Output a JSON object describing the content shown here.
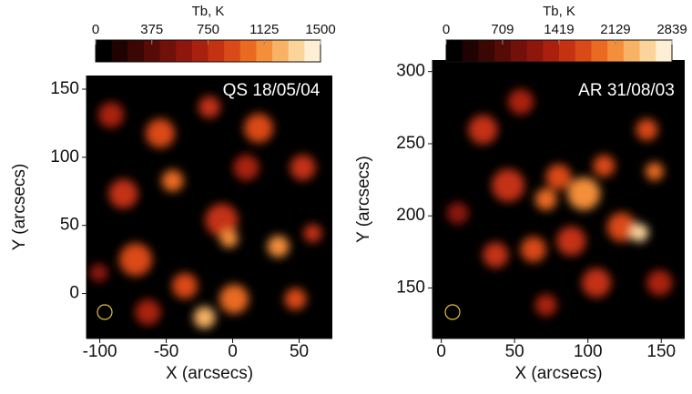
{
  "chart_data": [
    {
      "type": "heatmap",
      "title": "QS 18/05/04",
      "xlabel": "X (arcsecs)",
      "ylabel": "Y (arcsecs)",
      "xlim": [
        -110,
        75
      ],
      "ylim": [
        -33,
        160
      ],
      "xticks": [
        -100,
        -50,
        0,
        50
      ],
      "yticks": [
        0,
        50,
        100,
        150
      ],
      "colorbar": {
        "label": "Tb, K",
        "clim": [
          0,
          1500
        ],
        "ticks": [
          0,
          375,
          750,
          1125,
          1500
        ]
      },
      "colormap": [
        "#000000",
        "#1e0302",
        "#3a0704",
        "#560b06",
        "#72100a",
        "#8e160c",
        "#aa200e",
        "#c43212",
        "#da4a18",
        "#ea6a22",
        "#f48e3a",
        "#f8b266",
        "#fbd49c",
        "#fdefd4"
      ]
    },
    {
      "type": "heatmap",
      "title": "AR 31/08/03",
      "xlabel": "X (arcsecs)",
      "ylabel": "Y (arcsecs)",
      "xlim": [
        -6,
        166
      ],
      "ylim": [
        115,
        308
      ],
      "xticks": [
        0,
        50,
        100,
        150
      ],
      "yticks": [
        150,
        200,
        250,
        300
      ],
      "colorbar": {
        "label": "Tb, K",
        "clim": [
          0,
          2839
        ],
        "ticks": [
          0,
          709,
          1419,
          2129,
          2839
        ]
      },
      "colormap": [
        "#000000",
        "#1e0302",
        "#3a0704",
        "#560b06",
        "#72100a",
        "#8e160c",
        "#aa200e",
        "#c43212",
        "#da4a18",
        "#ea6a22",
        "#f48e3a",
        "#f8b266",
        "#fbd49c",
        "#fdefd4"
      ]
    }
  ]
}
